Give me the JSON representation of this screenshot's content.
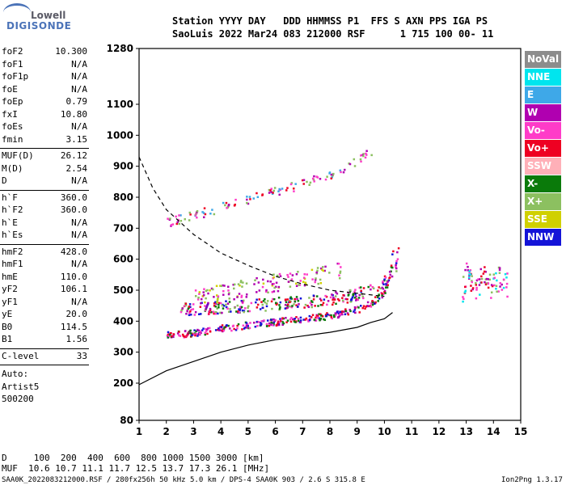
{
  "logo": {
    "top": "Lowell",
    "bottom": "DIGISONDE"
  },
  "header": {
    "line1": "Station YYYY DAY   DDD HHMMSS P1  FFS S AXN PPS IGA PS",
    "line2": "SaoLuis 2022 Mar24 083 212000 RSF      1 715 100 00- 11"
  },
  "params": [
    {
      "name": "foF2",
      "value": "10.300"
    },
    {
      "name": "foF1",
      "value": "N/A"
    },
    {
      "name": "foF1p",
      "value": "N/A"
    },
    {
      "name": "foE",
      "value": "N/A"
    },
    {
      "name": "foEp",
      "value": "0.79"
    },
    {
      "name": "fxI",
      "value": "10.80"
    },
    {
      "name": "foEs",
      "value": "N/A"
    },
    {
      "name": "fmin",
      "value": "3.15"
    },
    {
      "name": "MUF(D)",
      "value": "26.12"
    },
    {
      "name": "M(D)",
      "value": "2.54"
    },
    {
      "name": "D",
      "value": "N/A"
    },
    {
      "name": "h`F",
      "value": "360.0"
    },
    {
      "name": "h`F2",
      "value": "360.0"
    },
    {
      "name": "h`E",
      "value": "N/A"
    },
    {
      "name": "h`Es",
      "value": "N/A"
    },
    {
      "name": "hmF2",
      "value": "428.0"
    },
    {
      "name": "hmF1",
      "value": "N/A"
    },
    {
      "name": "hmE",
      "value": "110.0"
    },
    {
      "name": "yF2",
      "value": "106.1"
    },
    {
      "name": "yF1",
      "value": "N/A"
    },
    {
      "name": "yE",
      "value": "20.0"
    },
    {
      "name": "B0",
      "value": "114.5"
    },
    {
      "name": "B1",
      "value": "1.56"
    },
    {
      "name": "C-level",
      "value": "33"
    }
  ],
  "auto": {
    "label": "Auto:",
    "artist": "Artist5",
    "version": "500200"
  },
  "legend": [
    {
      "label": "NoVal",
      "color": "#8c8c8c"
    },
    {
      "label": "NNE",
      "color": "#00e5ee"
    },
    {
      "label": "E",
      "color": "#3ea8e8"
    },
    {
      "label": "W",
      "color": "#b000b0"
    },
    {
      "label": "Vo-",
      "color": "#ff3cc8"
    },
    {
      "label": "Vo+",
      "color": "#ee0022"
    },
    {
      "label": "SSW",
      "color": "#ffb0b8"
    },
    {
      "label": "X-",
      "color": "#0a7a0a"
    },
    {
      "label": "X+",
      "color": "#8cc060"
    },
    {
      "label": "SSE",
      "color": "#d0d000"
    },
    {
      "label": "NNW",
      "color": "#1414d8"
    }
  ],
  "footer": {
    "d_line": "D     100  200  400  600  800 1000 1500 3000 [km]",
    "muf_line": "MUF  10.6 10.7 11.1 11.7 12.5 13.7 17.3 26.1 [MHz]",
    "info_line": "SAA0K_2022083212000.RSF / 280fx256h 50 kHz 5.0 km / DPS-4 SAA0K 903 / 2.6 S 315.8 E",
    "version": "Ion2Png 1.3.17"
  },
  "chart_data": {
    "type": "scatter",
    "xlim": [
      1,
      15
    ],
    "ylim": [
      80,
      1280
    ],
    "x_ticks": [
      1,
      2,
      3,
      4,
      5,
      6,
      7,
      8,
      9,
      10,
      11,
      12,
      13,
      14,
      15
    ],
    "y_ticks": [
      80,
      200,
      300,
      400,
      500,
      600,
      700,
      800,
      900,
      1000,
      1100,
      1280
    ],
    "grid": false,
    "legend_position": "right",
    "profile_curve": {
      "x": [
        1.0,
        2.0,
        3.0,
        4.0,
        5.0,
        6.0,
        7.0,
        8.0,
        9.0,
        9.5,
        10.0,
        10.3
      ],
      "y": [
        195,
        240,
        270,
        300,
        323,
        340,
        352,
        364,
        380,
        396,
        408,
        428
      ]
    },
    "mufd_curve": {
      "x": [
        1.0,
        1.5,
        2.0,
        3.0,
        4.0,
        5.0,
        6.0,
        7.0,
        8.0,
        9.0,
        10.0
      ],
      "y": [
        930,
        830,
        760,
        680,
        620,
        580,
        545,
        520,
        500,
        490,
        480
      ]
    },
    "trace_o_lower": {
      "x": [
        2.0,
        3.0,
        4.0,
        5.0,
        6.0,
        7.0,
        8.0,
        8.5,
        9.0,
        9.5,
        10.0,
        10.2,
        10.3
      ],
      "y": [
        357,
        365,
        380,
        390,
        400,
        410,
        420,
        430,
        440,
        460,
        500,
        560,
        650
      ]
    },
    "trace_x_lower": {
      "x": [
        2.5,
        3.5,
        4.5,
        5.5,
        6.5,
        7.5,
        8.5,
        9.0,
        9.5,
        10.0,
        10.4,
        10.5
      ],
      "y": [
        440,
        445,
        450,
        456,
        462,
        470,
        480,
        490,
        505,
        530,
        580,
        660
      ]
    },
    "trace_multihop": {
      "x": [
        2.0,
        3.0,
        4.0,
        5.0,
        6.0,
        7.0,
        8.0,
        9.0,
        9.5
      ],
      "y": [
        720,
        745,
        770,
        795,
        820,
        845,
        875,
        920,
        950
      ]
    },
    "trace_spread": {
      "x": [
        3.0,
        4.0,
        5.0,
        6.0,
        7.0,
        8.0,
        8.5
      ],
      "y": [
        480,
        495,
        510,
        525,
        540,
        560,
        570
      ]
    },
    "cluster_high": {
      "x": [
        12.8,
        13.0,
        13.3,
        13.6,
        13.9,
        14.2,
        14.5
      ],
      "y": [
        490,
        560,
        500,
        550,
        510,
        540,
        520
      ]
    }
  }
}
